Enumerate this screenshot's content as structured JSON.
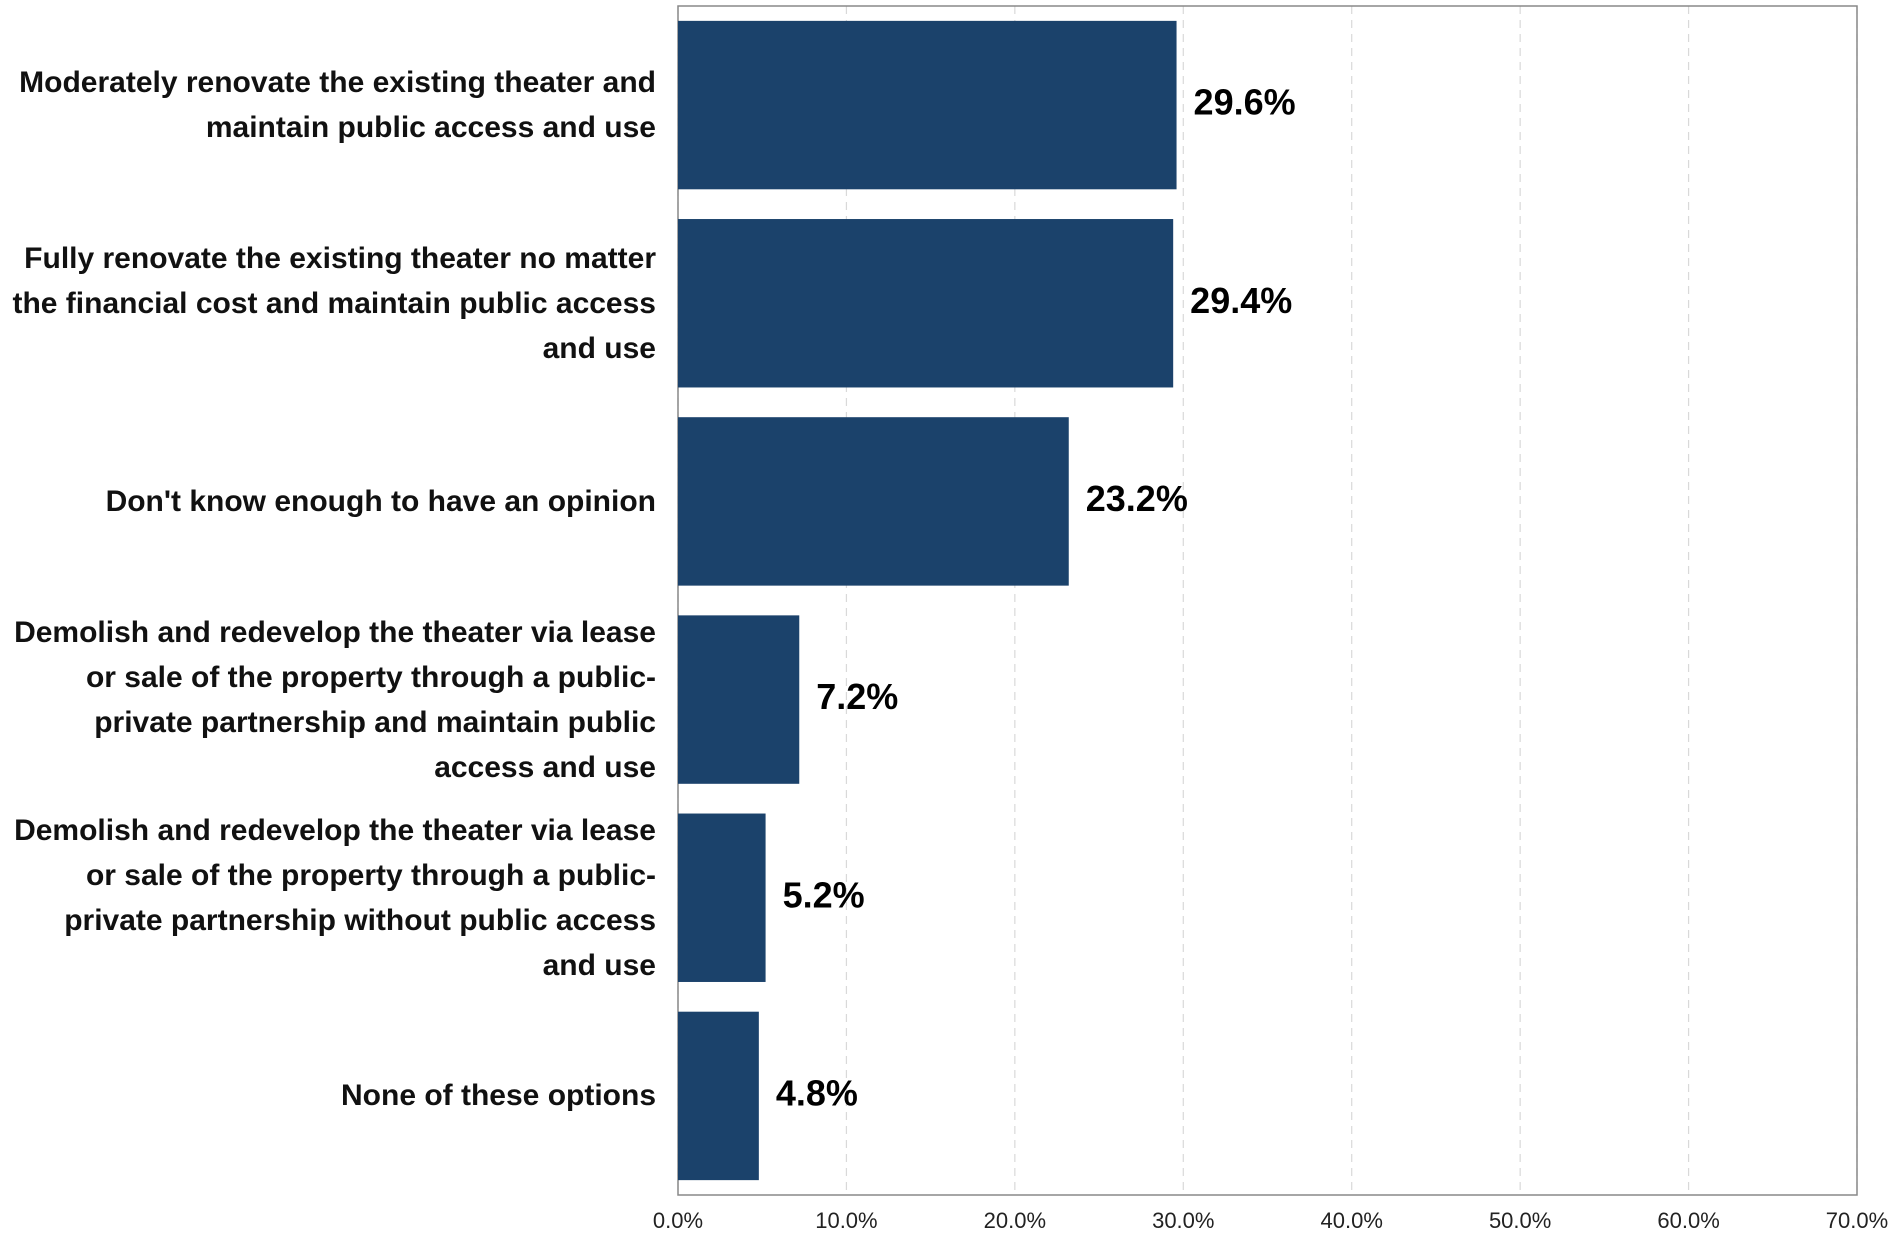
{
  "chart_data": {
    "type": "bar",
    "orientation": "horizontal",
    "categories": [
      "Moderately renovate the existing theater and maintain public access and use",
      "Fully renovate the existing theater no matter the financial cost and maintain public access and use",
      "Don't know enough to have an opinion",
      "Demolish and redevelop the theater via lease or sale of the property through a public-private partnership and maintain public access and use",
      "Demolish and redevelop the theater via lease or sale of the property through a public-private partnership without public access and use",
      "None of these options"
    ],
    "values": [
      29.6,
      29.4,
      23.2,
      7.2,
      5.2,
      4.8
    ],
    "value_labels": [
      "29.6%",
      "29.4%",
      "23.2%",
      "7.2%",
      "5.2%",
      "4.8%"
    ],
    "color": "#1b426b",
    "xlim": [
      0,
      70
    ],
    "xticks": [
      {
        "value": 0,
        "label": "0.0%"
      },
      {
        "value": 10,
        "label": "10.0%"
      },
      {
        "value": 20,
        "label": "20.0%"
      },
      {
        "value": 30,
        "label": "30.0%"
      },
      {
        "value": 40,
        "label": "40.0%"
      },
      {
        "value": 50,
        "label": "50.0%"
      },
      {
        "value": 60,
        "label": "60.0%"
      },
      {
        "value": 70,
        "label": "70.0%"
      }
    ],
    "grid": true
  }
}
